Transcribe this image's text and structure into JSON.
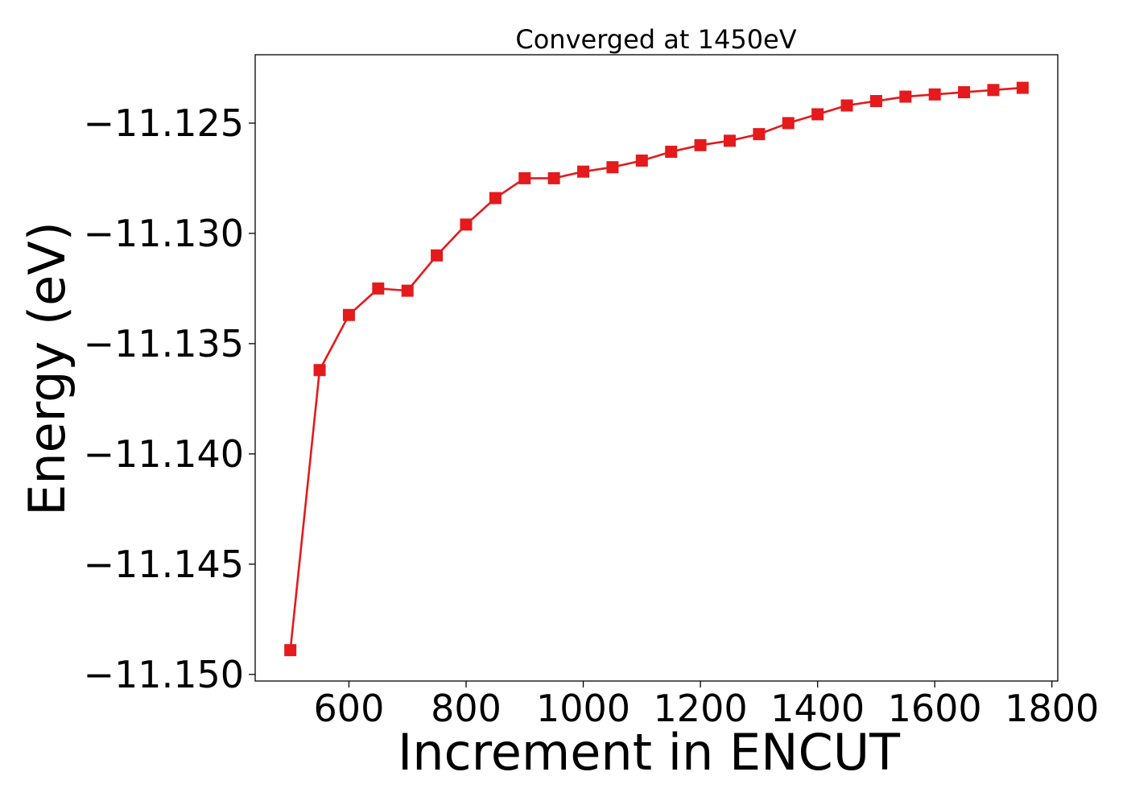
{
  "chart_data": {
    "type": "line",
    "title": "Converged at 1450eV",
    "xlabel": "Increment in ENCUT",
    "ylabel": "Energy (eV)",
    "xlim": [
      440,
      1810
    ],
    "ylim": [
      -11.1503,
      -11.1219
    ],
    "x_ticks": [
      600,
      800,
      1000,
      1200,
      1400,
      1600,
      1800
    ],
    "y_ticks": [
      -11.125,
      -11.13,
      -11.135,
      -11.14,
      -11.145,
      -11.15
    ],
    "y_tick_labels": [
      "−11.125",
      "−11.130",
      "−11.135",
      "−11.140",
      "−11.145",
      "−11.150"
    ],
    "grid": false,
    "legend": "none",
    "series": [
      {
        "color": "#e41a1c",
        "marker": "square",
        "x": [
          500,
          550,
          600,
          650,
          700,
          750,
          800,
          850,
          900,
          950,
          1000,
          1050,
          1100,
          1150,
          1200,
          1250,
          1300,
          1350,
          1400,
          1450,
          1500,
          1550,
          1600,
          1650,
          1700,
          1750
        ],
        "y": [
          -11.1489,
          -11.1362,
          -11.1337,
          -11.1325,
          -11.1326,
          -11.131,
          -11.1296,
          -11.1284,
          -11.1275,
          -11.1275,
          -11.1272,
          -11.127,
          -11.1267,
          -11.1263,
          -11.126,
          -11.1258,
          -11.1255,
          -11.125,
          -11.1246,
          -11.1242,
          -11.124,
          -11.1238,
          -11.1237,
          -11.1236,
          -11.1235,
          -11.1234
        ]
      }
    ]
  }
}
